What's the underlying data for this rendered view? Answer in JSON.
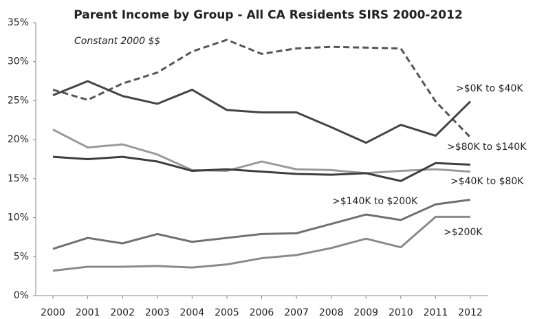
{
  "chart_data": {
    "type": "line",
    "title": "Parent Income by Group - All CA Residents SIRS 2000-2012",
    "annotation": "Constant 2000 $$",
    "categories": [
      "2000",
      "2001",
      "2002",
      "2003",
      "2004",
      "2005",
      "2006",
      "2007",
      "2008",
      "2009",
      "2010",
      "2011",
      "2012"
    ],
    "ylim": [
      0,
      35
    ],
    "yticks": [
      {
        "value": 0,
        "label": "0%"
      },
      {
        "value": 5,
        "label": "5%"
      },
      {
        "value": 10,
        "label": "10%"
      },
      {
        "value": 15,
        "label": "15%"
      },
      {
        "value": 20,
        "label": "20%"
      },
      {
        "value": 25,
        "label": "25%"
      },
      {
        "value": 30,
        "label": "30%"
      },
      {
        "value": 35,
        "label": "35%"
      }
    ],
    "grid": false,
    "series": [
      {
        "name": ">$80K to $140K",
        "color": "#555555",
        "dashed": true,
        "values": [
          26.4,
          25.1,
          27.2,
          28.6,
          31.3,
          32.8,
          31.0,
          31.7,
          31.9,
          31.8,
          31.7,
          24.9,
          20.3
        ]
      },
      {
        "name": ">$0K to $40K",
        "color": "#444444",
        "values": [
          25.7,
          27.5,
          25.6,
          24.6,
          26.4,
          23.8,
          23.5,
          23.5,
          21.6,
          19.6,
          21.9,
          20.5,
          24.9
        ]
      },
      {
        "color": "#9a9a9a",
        "values": [
          21.3,
          19.0,
          19.4,
          18.1,
          16.1,
          16.0,
          17.2,
          16.2,
          16.1,
          15.7,
          16.0,
          16.2,
          15.9
        ]
      },
      {
        "name": ">$40K to $80K",
        "color": "#3e3e3e",
        "values": [
          17.8,
          17.5,
          17.8,
          17.2,
          16.0,
          16.2,
          15.9,
          15.6,
          15.5,
          15.7,
          14.7,
          17.0,
          16.8
        ]
      },
      {
        "name": ">$140K to $200K",
        "color": "#707070",
        "values": [
          6.0,
          7.4,
          6.7,
          7.9,
          6.9,
          7.4,
          7.9,
          8.0,
          9.2,
          10.4,
          9.7,
          11.7,
          12.3
        ]
      },
      {
        "name": ">$200K",
        "color": "#8a8a8a",
        "values": [
          3.2,
          3.7,
          3.7,
          3.8,
          3.6,
          4.0,
          4.8,
          5.2,
          6.1,
          7.3,
          6.2,
          10.1,
          10.1
        ]
      }
    ]
  }
}
